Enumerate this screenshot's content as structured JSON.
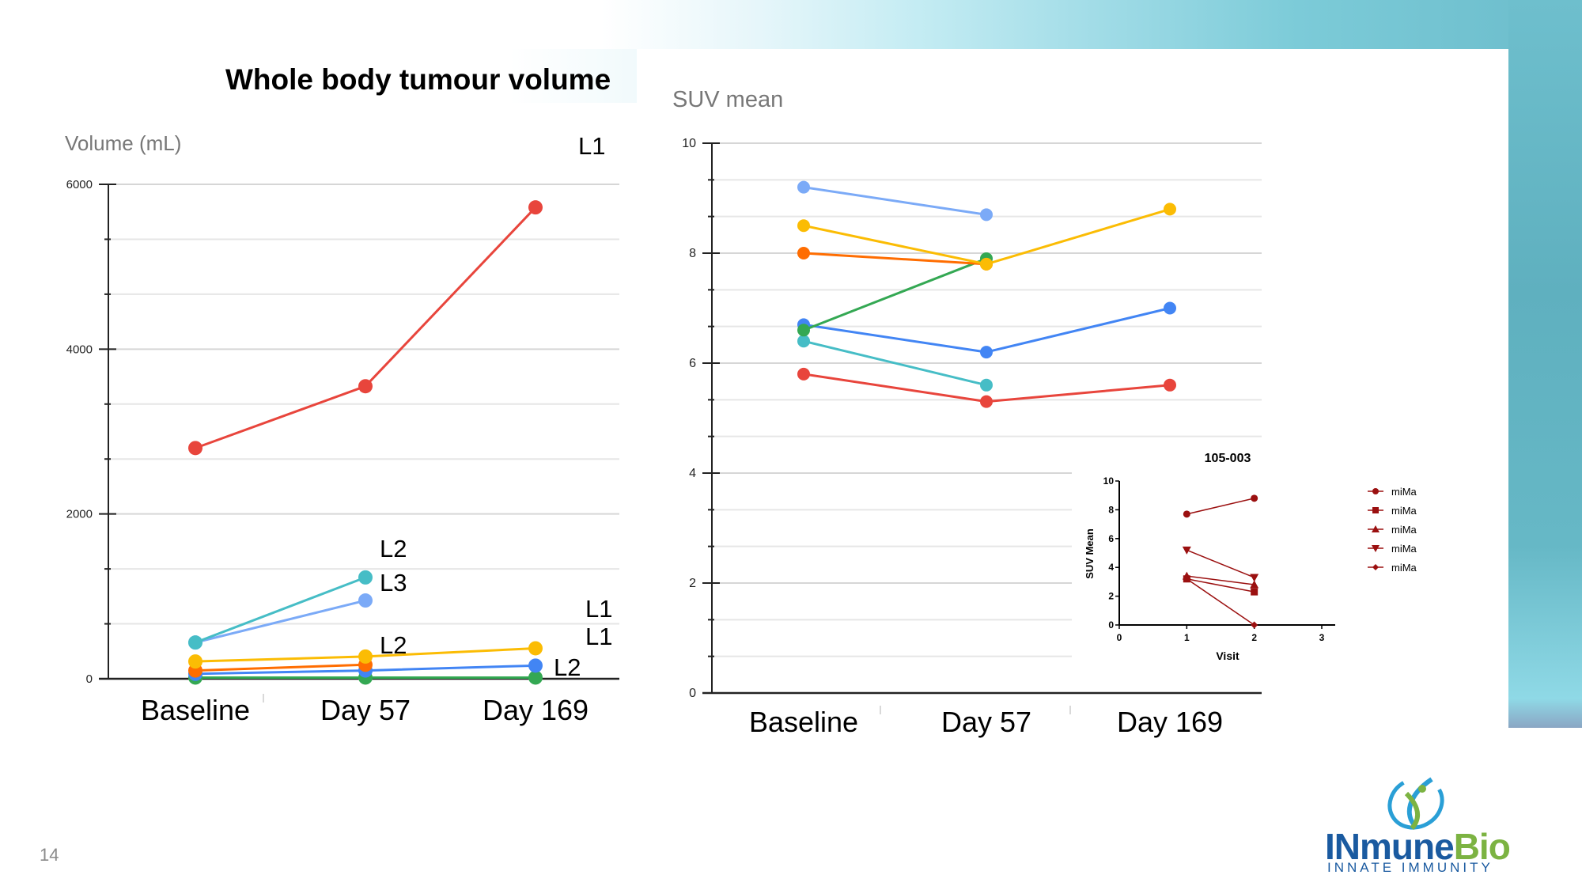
{
  "slide": {
    "title": "Whole body tumour volume",
    "page_number": "14"
  },
  "logo": {
    "name": "INmuneBio",
    "name_part1": "INmune",
    "name_part2": "Bio",
    "tagline": "INNATE IMMUNITY",
    "colors": {
      "blue": "#1a5aa0",
      "green": "#7cb342",
      "teal": "#2a9fd6"
    }
  },
  "chart_data": [
    {
      "id": "tumour-volume",
      "type": "line",
      "title": "Whole body tumour volume",
      "ylabel": "Volume (mL)",
      "xlabel": "",
      "categories": [
        "Baseline",
        "Day 57",
        "Day 169"
      ],
      "ylim": [
        0,
        6000
      ],
      "yticks": [
        0,
        2000,
        4000,
        6000
      ],
      "minor_gridlines_per_major": 2,
      "grid": true,
      "series": [
        {
          "name": "red",
          "color": "#e8453c",
          "values": [
            2800,
            3550,
            5720
          ]
        },
        {
          "name": "teal",
          "color": "#46bdc6",
          "values": [
            440,
            1230,
            null
          ]
        },
        {
          "name": "light-blue",
          "color": "#7baaf7",
          "values": [
            440,
            950,
            null
          ]
        },
        {
          "name": "yellow",
          "color": "#fbbc04",
          "values": [
            210,
            270,
            370
          ]
        },
        {
          "name": "orange",
          "color": "#ff6d01",
          "values": [
            100,
            170,
            null
          ]
        },
        {
          "name": "blue",
          "color": "#4285f4",
          "values": [
            60,
            100,
            160
          ]
        },
        {
          "name": "green",
          "color": "#34a853",
          "values": [
            15,
            15,
            15
          ]
        }
      ],
      "annotations": [
        {
          "text": "L1",
          "position": "top-right"
        },
        {
          "text": "L2",
          "position": "above day 57 teal"
        },
        {
          "text": "L3",
          "position": "right of day 57 teal"
        },
        {
          "text": "L2",
          "position": "above day 57 yellow"
        },
        {
          "text": "L1",
          "position": "right of day 169 upper"
        },
        {
          "text": "L1",
          "position": "right of day 169 middle"
        },
        {
          "text": "L2",
          "position": "right of day 169 blue"
        }
      ]
    },
    {
      "id": "suv-mean",
      "type": "line",
      "title": "",
      "ylabel": "SUV mean",
      "xlabel": "",
      "categories": [
        "Baseline",
        "Day 57",
        "Day 169"
      ],
      "ylim": [
        0,
        10
      ],
      "yticks": [
        0,
        2,
        4,
        6,
        8,
        10
      ],
      "minor_gridlines_per_major": 2,
      "grid": true,
      "series": [
        {
          "name": "light-blue",
          "color": "#7baaf7",
          "values": [
            9.2,
            8.7,
            null
          ]
        },
        {
          "name": "yellow",
          "color": "#fbbc04",
          "values": [
            8.5,
            7.8,
            8.8
          ]
        },
        {
          "name": "orange",
          "color": "#ff6d01",
          "values": [
            8.0,
            7.8,
            null
          ]
        },
        {
          "name": "green",
          "color": "#34a853",
          "values": [
            6.6,
            7.9,
            null
          ]
        },
        {
          "name": "blue",
          "color": "#4285f4",
          "values": [
            6.7,
            6.2,
            7.0
          ]
        },
        {
          "name": "teal",
          "color": "#46bdc6",
          "values": [
            6.4,
            5.6,
            null
          ]
        },
        {
          "name": "red",
          "color": "#e8453c",
          "values": [
            5.8,
            5.3,
            5.6
          ]
        }
      ]
    },
    {
      "id": "inset-105-003",
      "type": "line",
      "title": "105-003",
      "xlabel": "Visit",
      "ylabel": "SUV Mean",
      "xlim": [
        0,
        3
      ],
      "xticks": [
        0,
        1,
        2,
        3
      ],
      "ylim": [
        0,
        10
      ],
      "yticks": [
        0,
        2,
        4,
        6,
        8,
        10
      ],
      "grid": false,
      "color": "#9b1010",
      "legend_position": "right",
      "series": [
        {
          "name": "miMa",
          "marker": "circle",
          "x": [
            1,
            2
          ],
          "values": [
            7.7,
            8.8
          ]
        },
        {
          "name": "miMa",
          "marker": "square",
          "x": [
            1,
            2
          ],
          "values": [
            3.2,
            2.3
          ]
        },
        {
          "name": "miMa",
          "marker": "triangle-up",
          "x": [
            1,
            2
          ],
          "values": [
            3.4,
            2.8
          ]
        },
        {
          "name": "miMa",
          "marker": "triangle-down",
          "x": [
            1,
            2
          ],
          "values": [
            5.2,
            3.3
          ]
        },
        {
          "name": "miMa",
          "marker": "diamond",
          "x": [
            1,
            2
          ],
          "values": [
            3.2,
            0.0
          ]
        }
      ]
    }
  ]
}
